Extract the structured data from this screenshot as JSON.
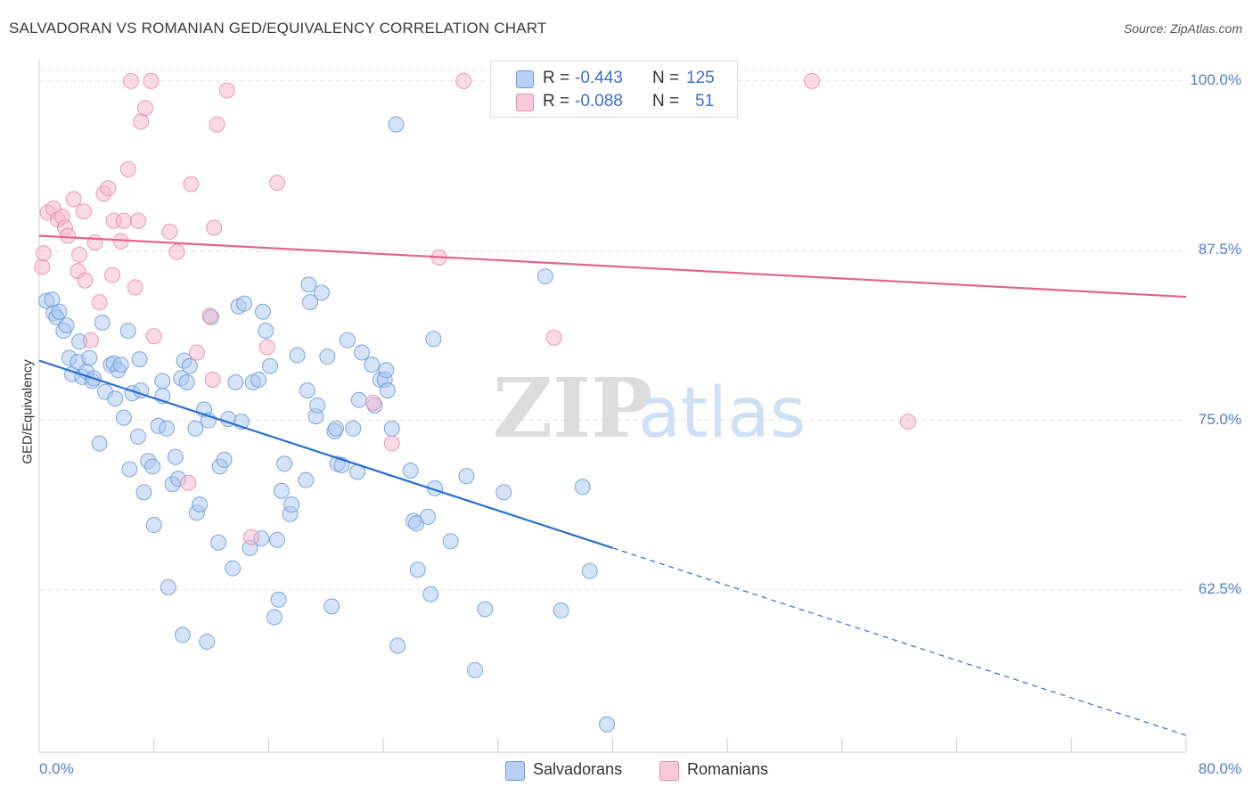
{
  "title": "SALVADORAN VS ROMANIAN GED/EQUIVALENCY CORRELATION CHART",
  "source": "Source: ZipAtlas.com",
  "watermark": {
    "zip": "ZIP",
    "atlas": "atlas"
  },
  "colors": {
    "blue_fill": "#a9c7f0",
    "blue_stroke": "#6a9ad8",
    "blue_line": "#2a6fd0",
    "pink_fill": "#f5b8cc",
    "pink_stroke": "#e98aa8",
    "pink_line": "#e4628e",
    "tick_text": "#4a7fd0",
    "grid": "#e3e3e3"
  },
  "stats": [
    {
      "r_label": "R =",
      "r": "-0.443",
      "n_label": "N =",
      "n": "125",
      "color": "blue"
    },
    {
      "r_label": "R =",
      "r": "-0.088",
      "n_label": "N =",
      "n": "51",
      "color": "pink"
    }
  ],
  "legend": [
    {
      "label": "Salvadorans",
      "color": "blue"
    },
    {
      "label": "Romanians",
      "color": "pink"
    }
  ],
  "chart_data": {
    "type": "scatter",
    "title": "SALVADORAN VS ROMANIAN GED/EQUIVALENCY CORRELATION CHART",
    "xlabel": "",
    "ylabel": "GED/Equivalency",
    "xlim": [
      0,
      80
    ],
    "ylim": [
      52.0,
      101.5
    ],
    "x_tick_labels": [
      "0.0%",
      "80.0%"
    ],
    "y_ticks": [
      62.5,
      75.0,
      87.5,
      100.0
    ],
    "y_tick_labels": [
      "62.5%",
      "75.0%",
      "87.5%",
      "100.0%"
    ],
    "grid": true,
    "legend_position": "bottom",
    "series": [
      {
        "name": "Salvadorans",
        "color": "blue",
        "trend": {
          "x_start": 0.0,
          "y_start": 79.4,
          "x_solid_end": 40.0,
          "y_solid_end": 65.6,
          "x_end": 80.0,
          "y_end": 51.8
        },
        "points": [
          [
            0.5,
            83.8
          ],
          [
            0.9,
            83.9
          ],
          [
            1.0,
            82.9
          ],
          [
            1.2,
            82.6
          ],
          [
            1.4,
            83.0
          ],
          [
            1.7,
            81.6
          ],
          [
            1.9,
            82.0
          ],
          [
            2.1,
            79.6
          ],
          [
            2.3,
            78.4
          ],
          [
            2.7,
            79.3
          ],
          [
            2.8,
            80.8
          ],
          [
            3.0,
            78.2
          ],
          [
            3.3,
            78.6
          ],
          [
            3.5,
            79.6
          ],
          [
            3.7,
            77.9
          ],
          [
            3.8,
            78.1
          ],
          [
            4.2,
            73.3
          ],
          [
            4.4,
            82.2
          ],
          [
            4.6,
            77.1
          ],
          [
            5.0,
            79.1
          ],
          [
            5.2,
            79.2
          ],
          [
            5.3,
            76.6
          ],
          [
            5.5,
            78.7
          ],
          [
            5.7,
            79.1
          ],
          [
            5.9,
            75.2
          ],
          [
            6.2,
            81.6
          ],
          [
            6.3,
            71.4
          ],
          [
            6.5,
            77.0
          ],
          [
            6.9,
            73.8
          ],
          [
            7.0,
            79.5
          ],
          [
            7.1,
            77.2
          ],
          [
            7.3,
            69.7
          ],
          [
            7.6,
            72.0
          ],
          [
            7.9,
            71.6
          ],
          [
            8.0,
            67.3
          ],
          [
            8.3,
            74.6
          ],
          [
            8.6,
            77.9
          ],
          [
            8.6,
            76.8
          ],
          [
            8.9,
            74.4
          ],
          [
            9.0,
            62.7
          ],
          [
            9.3,
            70.3
          ],
          [
            9.5,
            72.3
          ],
          [
            9.7,
            70.7
          ],
          [
            9.9,
            78.1
          ],
          [
            10.0,
            59.2
          ],
          [
            10.1,
            79.4
          ],
          [
            10.3,
            77.8
          ],
          [
            10.5,
            79.0
          ],
          [
            10.9,
            74.4
          ],
          [
            11.0,
            68.2
          ],
          [
            11.2,
            68.8
          ],
          [
            11.5,
            75.8
          ],
          [
            11.7,
            58.7
          ],
          [
            11.8,
            75.0
          ],
          [
            12.0,
            82.6
          ],
          [
            12.5,
            66.0
          ],
          [
            12.6,
            71.6
          ],
          [
            12.9,
            72.1
          ],
          [
            13.2,
            75.1
          ],
          [
            13.5,
            64.1
          ],
          [
            13.7,
            77.8
          ],
          [
            13.9,
            83.4
          ],
          [
            14.1,
            74.9
          ],
          [
            14.3,
            83.6
          ],
          [
            14.7,
            65.6
          ],
          [
            14.9,
            77.8
          ],
          [
            15.3,
            78.0
          ],
          [
            15.5,
            66.3
          ],
          [
            15.6,
            83.0
          ],
          [
            15.8,
            81.6
          ],
          [
            16.1,
            79.0
          ],
          [
            16.4,
            60.5
          ],
          [
            16.6,
            66.2
          ],
          [
            16.7,
            61.8
          ],
          [
            16.9,
            69.8
          ],
          [
            17.1,
            71.8
          ],
          [
            17.5,
            68.1
          ],
          [
            17.6,
            68.8
          ],
          [
            18.0,
            79.8
          ],
          [
            18.6,
            70.6
          ],
          [
            18.7,
            77.2
          ],
          [
            18.8,
            85.0
          ],
          [
            18.9,
            83.7
          ],
          [
            19.3,
            75.3
          ],
          [
            19.4,
            76.1
          ],
          [
            19.7,
            84.4
          ],
          [
            20.1,
            79.7
          ],
          [
            20.4,
            61.3
          ],
          [
            20.6,
            74.2
          ],
          [
            20.7,
            74.4
          ],
          [
            20.8,
            71.8
          ],
          [
            21.1,
            71.7
          ],
          [
            21.5,
            80.9
          ],
          [
            21.9,
            74.4
          ],
          [
            22.2,
            71.2
          ],
          [
            22.3,
            76.5
          ],
          [
            22.5,
            80.0
          ],
          [
            23.2,
            79.1
          ],
          [
            23.4,
            76.1
          ],
          [
            23.8,
            78.0
          ],
          [
            24.1,
            78.0
          ],
          [
            24.2,
            78.7
          ],
          [
            24.3,
            77.2
          ],
          [
            24.6,
            74.4
          ],
          [
            24.9,
            96.8
          ],
          [
            25.0,
            58.4
          ],
          [
            25.9,
            71.3
          ],
          [
            26.1,
            67.6
          ],
          [
            26.3,
            67.4
          ],
          [
            26.4,
            64.0
          ],
          [
            27.1,
            67.9
          ],
          [
            27.3,
            62.2
          ],
          [
            27.5,
            81.0
          ],
          [
            27.6,
            70.0
          ],
          [
            28.7,
            66.1
          ],
          [
            29.8,
            70.9
          ],
          [
            30.4,
            56.6
          ],
          [
            31.1,
            61.1
          ],
          [
            32.4,
            69.7
          ],
          [
            35.3,
            85.6
          ],
          [
            36.4,
            61.0
          ],
          [
            37.9,
            70.1
          ],
          [
            38.4,
            63.9
          ],
          [
            39.6,
            52.6
          ]
        ]
      },
      {
        "name": "Romanians",
        "color": "pink",
        "trend": {
          "x_start": 0.0,
          "y_start": 88.6,
          "x_end": 80.0,
          "y_end": 84.1
        },
        "points": [
          [
            0.2,
            86.3
          ],
          [
            0.3,
            87.3
          ],
          [
            0.6,
            90.3
          ],
          [
            1.0,
            90.6
          ],
          [
            1.3,
            89.8
          ],
          [
            1.6,
            90.0
          ],
          [
            1.8,
            89.2
          ],
          [
            2.0,
            88.6
          ],
          [
            2.4,
            91.3
          ],
          [
            2.7,
            86.0
          ],
          [
            2.8,
            87.2
          ],
          [
            3.1,
            90.4
          ],
          [
            3.2,
            85.3
          ],
          [
            3.6,
            80.9
          ],
          [
            3.9,
            88.1
          ],
          [
            4.2,
            83.7
          ],
          [
            4.5,
            91.7
          ],
          [
            4.8,
            92.1
          ],
          [
            5.1,
            85.7
          ],
          [
            5.2,
            89.7
          ],
          [
            5.7,
            88.2
          ],
          [
            5.9,
            89.7
          ],
          [
            6.2,
            93.5
          ],
          [
            6.4,
            100.0
          ],
          [
            6.7,
            84.8
          ],
          [
            6.9,
            89.7
          ],
          [
            7.1,
            97.0
          ],
          [
            7.4,
            98.0
          ],
          [
            7.8,
            100.0
          ],
          [
            8.0,
            81.2
          ],
          [
            9.1,
            88.9
          ],
          [
            9.6,
            87.4
          ],
          [
            10.4,
            70.4
          ],
          [
            10.6,
            92.4
          ],
          [
            11.0,
            80.0
          ],
          [
            11.9,
            82.7
          ],
          [
            12.1,
            78.0
          ],
          [
            12.2,
            89.2
          ],
          [
            12.4,
            96.8
          ],
          [
            13.1,
            99.3
          ],
          [
            14.8,
            66.4
          ],
          [
            15.9,
            80.4
          ],
          [
            16.6,
            92.5
          ],
          [
            23.3,
            76.3
          ],
          [
            24.6,
            73.3
          ],
          [
            27.9,
            87.0
          ],
          [
            29.6,
            100.0
          ],
          [
            32.1,
            100.0
          ],
          [
            35.9,
            81.1
          ],
          [
            53.9,
            100.0
          ],
          [
            60.6,
            74.9
          ]
        ]
      }
    ]
  }
}
